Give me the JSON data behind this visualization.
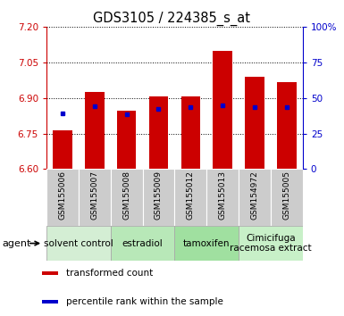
{
  "title": "GDS3105 / 224385_s_at",
  "samples": [
    "GSM155006",
    "GSM155007",
    "GSM155008",
    "GSM155009",
    "GSM155012",
    "GSM155013",
    "GSM154972",
    "GSM155005"
  ],
  "bar_tops": [
    6.765,
    6.925,
    6.845,
    6.905,
    6.905,
    7.1,
    6.99,
    6.965
  ],
  "bar_bottom": 6.6,
  "blue_values": [
    6.835,
    6.865,
    6.831,
    6.855,
    6.862,
    6.868,
    6.862,
    6.861
  ],
  "ylim_left": [
    6.6,
    7.2
  ],
  "yticks_left": [
    6.6,
    6.75,
    6.9,
    7.05,
    7.2
  ],
  "yticks_right": [
    0,
    25,
    50,
    75,
    100
  ],
  "ylim_right": [
    0,
    100
  ],
  "bar_color": "#cc0000",
  "blue_color": "#0000cc",
  "agent_groups": [
    {
      "label": "solvent control",
      "start": 0,
      "end": 2,
      "color": "#d4eed4"
    },
    {
      "label": "estradiol",
      "start": 2,
      "end": 4,
      "color": "#b8e8b8"
    },
    {
      "label": "tamoxifen",
      "start": 4,
      "end": 6,
      "color": "#a0e0a0"
    },
    {
      "label": "Cimicifuga\nracemosa extract",
      "start": 6,
      "end": 8,
      "color": "#c8f0c8"
    }
  ],
  "legend_items": [
    {
      "color": "#cc0000",
      "label": "transformed count"
    },
    {
      "color": "#0000cc",
      "label": "percentile rank within the sample"
    }
  ],
  "bar_width": 0.6,
  "title_fontsize": 10.5,
  "tick_fontsize": 7.5,
  "sample_fontsize": 6.5,
  "agent_label_fontsize": 7.5,
  "legend_fontsize": 7.5
}
